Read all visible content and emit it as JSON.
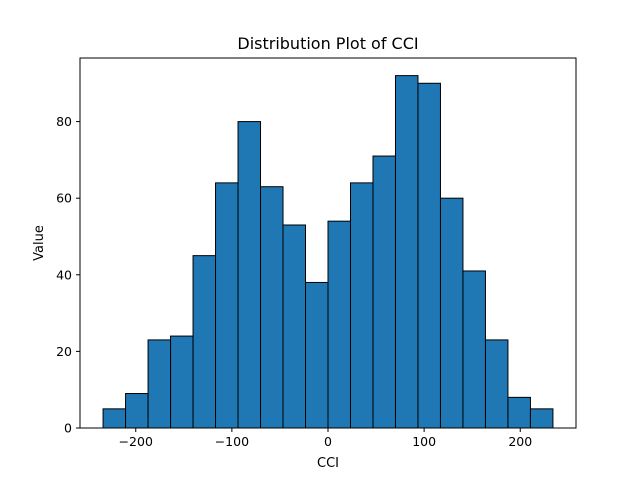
{
  "chart_data": {
    "type": "bar",
    "title": "Distribution Plot of CCI",
    "xlabel": "CCI",
    "ylabel": "Value",
    "xlim": [
      -258,
      258
    ],
    "ylim": [
      0,
      96.6
    ],
    "grid": false,
    "bin_edges": [
      -234,
      -210.6,
      -187.2,
      -163.8,
      -140.4,
      -117,
      -93.6,
      -70.2,
      -46.8,
      -23.4,
      0,
      23.4,
      46.8,
      70.2,
      93.6,
      117,
      140.4,
      163.8,
      187.2,
      210.6,
      234
    ],
    "values": [
      5,
      9,
      23,
      24,
      45,
      64,
      80,
      63,
      53,
      38,
      54,
      64,
      71,
      92,
      90,
      60,
      41,
      23,
      8,
      5
    ],
    "x_ticks": [
      -200,
      -100,
      0,
      100,
      200
    ],
    "x_tick_labels": [
      "−200",
      "−100",
      "0",
      "100",
      "200"
    ],
    "y_ticks": [
      0,
      20,
      40,
      60,
      80
    ],
    "y_tick_labels": [
      "0",
      "20",
      "40",
      "60",
      "80"
    ],
    "colors": {
      "bar_fill": "#1f77b4",
      "bar_edge": "#000000",
      "axes": "#000000"
    }
  }
}
